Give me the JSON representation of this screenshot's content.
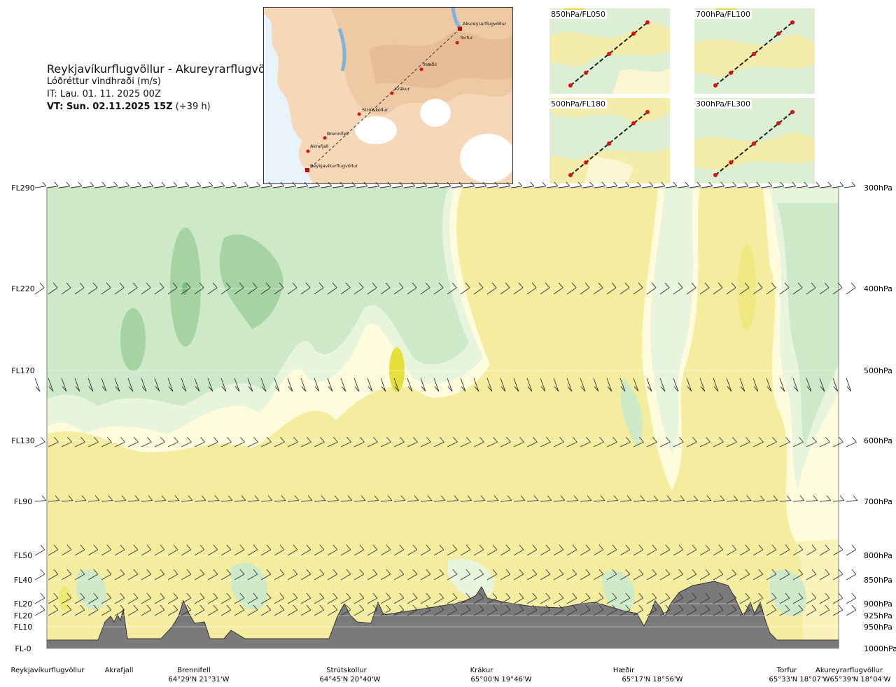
{
  "header": {
    "title": "Reykjavíkurflugvöllur - Akureyrarflugvöllur",
    "subtitle": "Lóðréttur vindhraði (m/s)",
    "init_time": "IT: Lau. 01. 11. 2025 00Z",
    "valid_time_bold": "VT: Sun. 02.11.2025 15Z",
    "valid_time_offset": "(+39 h)"
  },
  "route_map": {
    "waypoints": [
      "Reykjavíkurflugvöllur",
      "Akrafjall",
      "Brennifell",
      "Strútskollur",
      "Krákur",
      "Hæðir",
      "Torfur",
      "Akureyrarflugvöllur"
    ]
  },
  "mini_maps": [
    {
      "label": "850hPa/FL050"
    },
    {
      "label": "700hPa/FL100"
    },
    {
      "label": "500hPa/FL180"
    },
    {
      "label": "300hPa/FL300"
    }
  ],
  "chart_data": {
    "type": "heatmap",
    "title": "Lóðréttur vindhraði (m/s)",
    "levels": [
      {
        "fl": "FL290",
        "hpa": "300hPa"
      },
      {
        "fl": "FL220",
        "hpa": "400hPa"
      },
      {
        "fl": "FL170",
        "hpa": "500hPa"
      },
      {
        "fl": "FL130",
        "hpa": "600hPa"
      },
      {
        "fl": "FL90",
        "hpa": "700hPa"
      },
      {
        "fl": "FL50",
        "hpa": "800hPa"
      },
      {
        "fl": "FL40",
        "hpa": "850hPa"
      },
      {
        "fl": "FL20",
        "hpa": "900hPa"
      },
      {
        "fl": "FL20",
        "hpa": "925hPa"
      },
      {
        "fl": "FL10",
        "hpa": "950hPa"
      },
      {
        "fl": "FL-0",
        "hpa": "1000hPa"
      }
    ],
    "waypoints": [
      {
        "name": "Reykjavíkurflugvöllur",
        "coord": ""
      },
      {
        "name": "Akrafjall",
        "coord": ""
      },
      {
        "name": "Brennifell",
        "coord": "64°29'N 21°31'W"
      },
      {
        "name": "Strútskollur",
        "coord": "64°45'N 20°40'W"
      },
      {
        "name": "Krákur",
        "coord": "65°00'N 19°46'W"
      },
      {
        "name": "Hæðir",
        "coord": "65°17'N 18°56'W"
      },
      {
        "name": "Torfur",
        "coord": "65°33'N 18°07'W"
      },
      {
        "name": "Akureyrarflugvöllur",
        "coord": "65°39'N 18°04'W"
      }
    ],
    "colors": {
      "upward_strong": "#e7df3c",
      "upward_moderate": "#f4ed9f",
      "neutral": "#fffbdc",
      "downward_light": "#e7f5dc",
      "downward_moderate": "#cde9c8",
      "downward_strong": "#a6d3a3",
      "terrain": "#7a7a7a"
    }
  }
}
